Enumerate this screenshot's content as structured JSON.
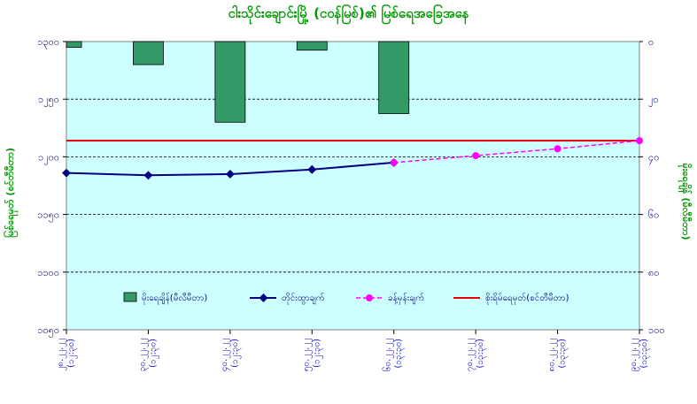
{
  "chart_data": {
    "type": "bar+line",
    "title": "ငါးသိုင်းချောင်းမြို့ (ငဝန်မြစ်)၏ မြစ်ရေအခြေအနေ",
    "ylabel_left": "မြစ်ရေမှတ် (စင်တီမီတာ)",
    "ylabel_right": "မိုးရေချိန် (မီလီမီတာ)",
    "categories": [
      "၂၈.၂၂.၂၂\n(၁၂:၃၀)",
      "၃၀.၂၂.၂၂\n(၁၂:၃၀)",
      "၄၀.၂၂.၂၂\n(၁၂:၃၀)",
      "၅၀.၂၂.၂၂\n(၁၂:၃၀)",
      "၆၀.၂၂.၂၂\n(၁၃:၃၀)",
      "၇၀.၂၂.၂၂\n(၁၃:၃၀)",
      "၈၀.၂၂.၂၂\n(၁၃:၃၀)",
      "၉၀.၂၂.၂၂\n(၁၃:၃၀)"
    ],
    "ylim_left": [
      1050,
      1300
    ],
    "yticks_left": [
      "၁၀၅၀",
      "၁၁၀၀",
      "၁၁၅၀",
      "၁၂၀၀",
      "၁၂၅၀",
      "၁၃၀၀"
    ],
    "ylim_right": [
      0,
      100
    ],
    "yticks_right": [
      "၀",
      "၂၀",
      "၄၀",
      "၆၀",
      "၈၀",
      "၁၀၀"
    ],
    "bars": {
      "name": "မိုးရေချိန်(မီလီမီတာ)",
      "color": "#339966",
      "values": [
        2,
        8,
        28,
        3,
        25,
        null,
        null,
        null
      ]
    },
    "actual": {
      "name": "တိုင်းထွာချက်",
      "color": "#000080",
      "values": [
        1186,
        1184,
        1185,
        1189,
        1195,
        null,
        null,
        null
      ]
    },
    "forecast": {
      "name": "ခန့်မှန်းချက်",
      "color": "#ff00ff",
      "values": [
        null,
        null,
        null,
        null,
        1195,
        1201,
        1207,
        1214
      ]
    },
    "danger": {
      "name": "စိုးရိမ်ရေမှတ်(စင်တီမီတာ)",
      "color": "#e00000",
      "value": 1214
    },
    "plot_bg": "#ccffff",
    "grid": true,
    "legend_position": "bottom-inside"
  }
}
